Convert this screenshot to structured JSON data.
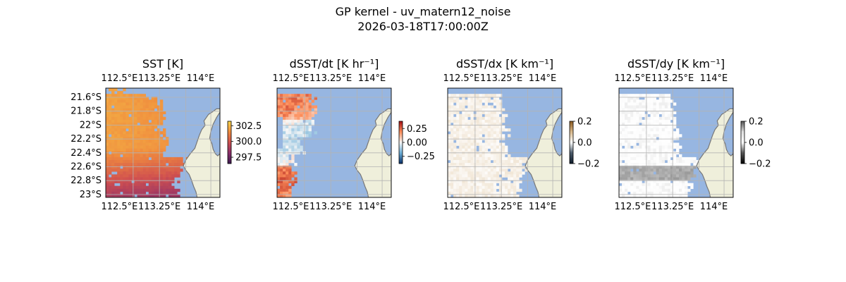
{
  "figure": {
    "title": "GP kernel - uv_matern12_noise",
    "subtitle": "2026-03-18T17:00:00Z"
  },
  "colors": {
    "ocean": "#97b6e1",
    "land": "#efefdb",
    "coast": "#777777",
    "grid": "#b3b3b3",
    "sst_colormap": [
      "#3b1a4f",
      "#8c2f6b",
      "#d0504f",
      "#f08c3e",
      "#f7d64a"
    ],
    "ddt_colormap": [
      "#08306b",
      "#6baed6",
      "#f7f7f7",
      "#fc8d59",
      "#a50f15"
    ],
    "dx_colormap": [
      "#0d1b2a",
      "#4a5a6a",
      "#ffffff",
      "#d9b98b",
      "#8c5a1f"
    ],
    "dy_colormap": [
      "#000000",
      "#555555",
      "#ffffff",
      "#e0e0e0",
      "#555555"
    ]
  },
  "chart_data": [
    {
      "type": "heatmap",
      "title": "SST [K]",
      "colorbar_ticks": [
        "302.5",
        "300.0",
        "297.5"
      ],
      "colorbar_range": [
        296.5,
        303.2
      ],
      "lon_ticks": [
        "112.5°E",
        "113.25°E",
        "114°E"
      ],
      "lat_ticks": [
        "21.6°S",
        "21.8°S",
        "22°S",
        "22.2°S",
        "22.4°S",
        "22.6°S",
        "22.8°S",
        "23°S"
      ],
      "extent": {
        "lon": [
          112.5,
          114.1
        ],
        "lat": [
          -23.04,
          -21.48
        ]
      },
      "field_note": "warm ~301-302.5 K over western ocean, cooler ~299 K in south"
    },
    {
      "type": "heatmap",
      "title": "dSST/dt [K hr⁻¹]",
      "colorbar_ticks": [
        "0.25",
        "0.00",
        "−0.25"
      ],
      "colorbar_range": [
        -0.38,
        0.38
      ],
      "lon_ticks": [
        "112.5°E",
        "113.25°E",
        "114°E"
      ],
      "extent": {
        "lon": [
          112.5,
          114.1
        ],
        "lat": [
          -23.04,
          -21.48
        ]
      }
    },
    {
      "type": "heatmap",
      "title": "dSST/dx [K km⁻¹]",
      "colorbar_ticks": [
        "0.2",
        "0.0",
        "−0.2"
      ],
      "colorbar_range": [
        -0.2,
        0.2
      ],
      "lon_ticks": [
        "112.5°E",
        "113.25°E",
        "114°E"
      ],
      "extent": {
        "lon": [
          112.5,
          114.1
        ],
        "lat": [
          -23.04,
          -21.48
        ]
      }
    },
    {
      "type": "heatmap",
      "title": "dSST/dy [K km⁻¹]",
      "colorbar_ticks": [
        "0.2",
        "0.0",
        "−0.2"
      ],
      "colorbar_range": [
        -0.2,
        0.2
      ],
      "lon_ticks": [
        "112.5°E",
        "113.25°E",
        "114°E"
      ],
      "extent": {
        "lon": [
          112.5,
          114.1
        ],
        "lat": [
          -23.04,
          -21.48
        ]
      }
    }
  ]
}
